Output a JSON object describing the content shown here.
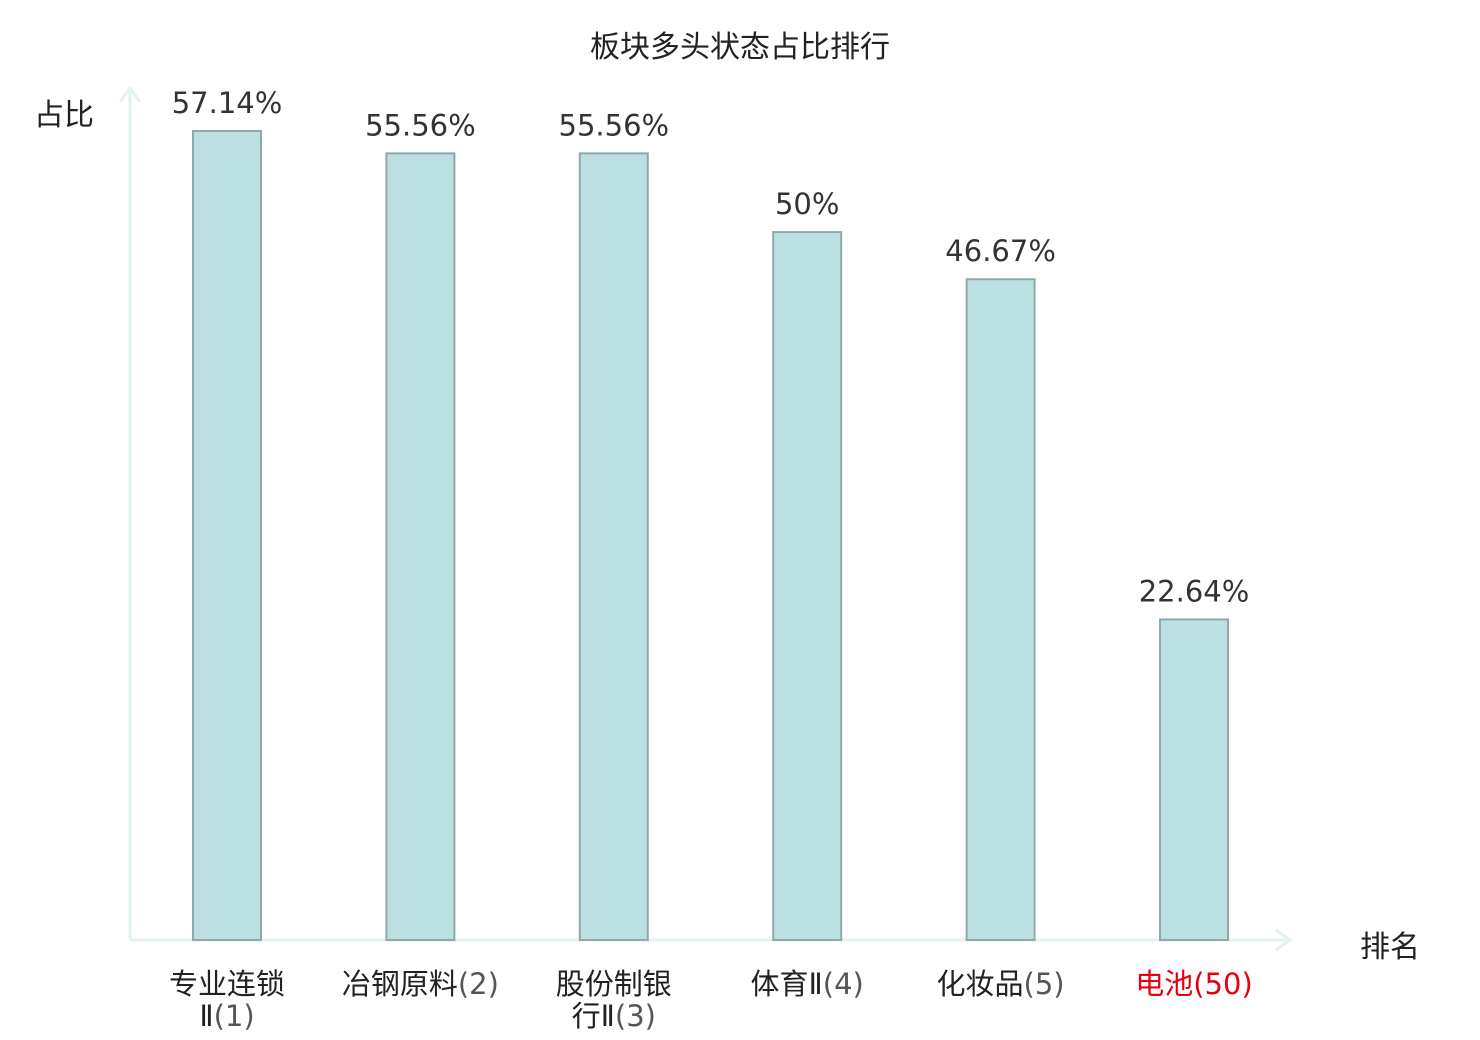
{
  "chart_data": {
    "type": "bar",
    "title": "板块多头状态占比排行",
    "ylabel": "占比",
    "xlabel": "排名",
    "categories": [
      {
        "name": "专业连锁",
        "name2": "Ⅱ",
        "rank": "(1)",
        "highlight": false
      },
      {
        "name": "冶钢原料",
        "name2": "",
        "rank": "(2)",
        "highlight": false
      },
      {
        "name": "股份制银",
        "name2": "行Ⅱ",
        "rank": "(3)",
        "highlight": false
      },
      {
        "name": "体育Ⅱ",
        "name2": "",
        "rank": "(4)",
        "highlight": false
      },
      {
        "name": "化妆品",
        "name2": "",
        "rank": "(5)",
        "highlight": false
      },
      {
        "name": "电池",
        "name2": "",
        "rank": "(50)",
        "highlight": true
      }
    ],
    "values": [
      57.14,
      55.56,
      55.56,
      50,
      46.67,
      22.64
    ],
    "value_labels": [
      "57.14%",
      "55.56%",
      "55.56%",
      "50%",
      "46.67%",
      "22.64%"
    ],
    "ylim": [
      0,
      57.14
    ],
    "grid": false,
    "colors": {
      "bar_fill": "#bce0e2",
      "bar_stroke": "#8fa9aa",
      "axis": "#e3f3f1",
      "label": "#333333",
      "highlight": "#e60012",
      "rank": "#555555"
    }
  }
}
